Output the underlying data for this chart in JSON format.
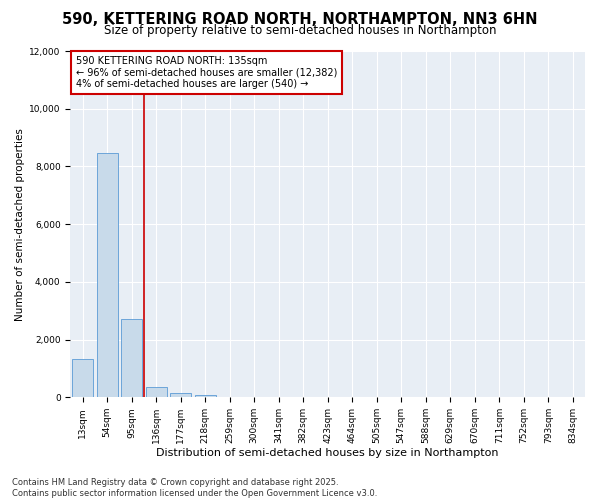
{
  "title": "590, KETTERING ROAD NORTH, NORTHAMPTON, NN3 6HN",
  "subtitle": "Size of property relative to semi-detached houses in Northampton",
  "xlabel": "Distribution of semi-detached houses by size in Northampton",
  "ylabel": "Number of semi-detached properties",
  "categories": [
    "13sqm",
    "54sqm",
    "95sqm",
    "136sqm",
    "177sqm",
    "218sqm",
    "259sqm",
    "300sqm",
    "341sqm",
    "382sqm",
    "423sqm",
    "464sqm",
    "505sqm",
    "547sqm",
    "588sqm",
    "629sqm",
    "670sqm",
    "711sqm",
    "752sqm",
    "793sqm",
    "834sqm"
  ],
  "values": [
    1320,
    8450,
    2720,
    360,
    130,
    80,
    0,
    0,
    0,
    0,
    0,
    0,
    0,
    0,
    0,
    0,
    0,
    0,
    0,
    0,
    0
  ],
  "bar_color": "#c8daea",
  "bar_edge_color": "#5b9bd5",
  "vline_color": "#cc0000",
  "annotation_line1": "590 KETTERING ROAD NORTH: 135sqm",
  "annotation_line2": "← 96% of semi-detached houses are smaller (12,382)",
  "annotation_line3": "4% of semi-detached houses are larger (540) →",
  "annotation_box_facecolor": "white",
  "annotation_box_edgecolor": "#cc0000",
  "ylim": [
    0,
    12000
  ],
  "yticks": [
    0,
    2000,
    4000,
    6000,
    8000,
    10000,
    12000
  ],
  "footer_line1": "Contains HM Land Registry data © Crown copyright and database right 2025.",
  "footer_line2": "Contains public sector information licensed under the Open Government Licence v3.0.",
  "bg_color": "#ffffff",
  "plot_bg_color": "#e8eef5",
  "grid_color": "#ffffff",
  "title_fontsize": 10.5,
  "subtitle_fontsize": 8.5,
  "xlabel_fontsize": 8,
  "ylabel_fontsize": 7.5,
  "tick_fontsize": 6.5,
  "annotation_fontsize": 7,
  "footer_fontsize": 6
}
